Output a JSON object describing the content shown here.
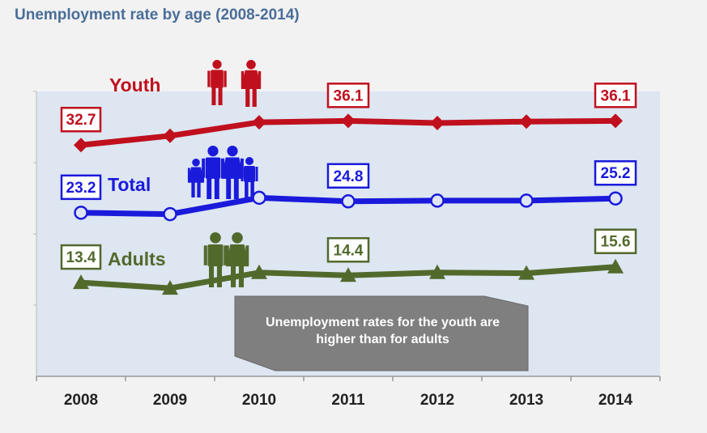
{
  "title": "Unemployment rate by age (2008-2014)",
  "callout": {
    "line1": "Unemployment rates for the youth are",
    "line2": "higher than for adults"
  },
  "colors": {
    "youth": "#c0101e",
    "total": "#1a1adb",
    "adults": "#52692c",
    "plot_bg": "#dde6f1",
    "callout_bg": "#7f7f7f"
  },
  "icons": [
    "couple-youth-icon",
    "family-icon",
    "couple-adults-icon"
  ],
  "chart_data": {
    "type": "line",
    "categories": [
      "2008",
      "2009",
      "2010",
      "2011",
      "2012",
      "2013",
      "2014"
    ],
    "series": [
      {
        "name": "Youth",
        "marker": "diamond",
        "values": [
          32.7,
          34.0,
          35.9,
          36.1,
          35.8,
          36.0,
          36.1
        ],
        "labeled": [
          0,
          3,
          6
        ],
        "labels": [
          "32.7",
          "36.1",
          "36.1"
        ]
      },
      {
        "name": "Total",
        "marker": "circle",
        "values": [
          23.2,
          23.0,
          25.3,
          24.8,
          24.9,
          24.9,
          25.2
        ],
        "labeled": [
          0,
          3,
          6
        ],
        "labels": [
          "23.2",
          "24.8",
          "25.2"
        ]
      },
      {
        "name": "Adults",
        "marker": "triangle",
        "values": [
          13.4,
          12.6,
          14.8,
          14.4,
          14.8,
          14.7,
          15.6
        ],
        "labeled": [
          0,
          3,
          6
        ],
        "labels": [
          "13.4",
          "14.4",
          "15.6"
        ]
      }
    ],
    "ylim": [
      0,
      40
    ],
    "grid": false,
    "legend": "inline labels"
  }
}
